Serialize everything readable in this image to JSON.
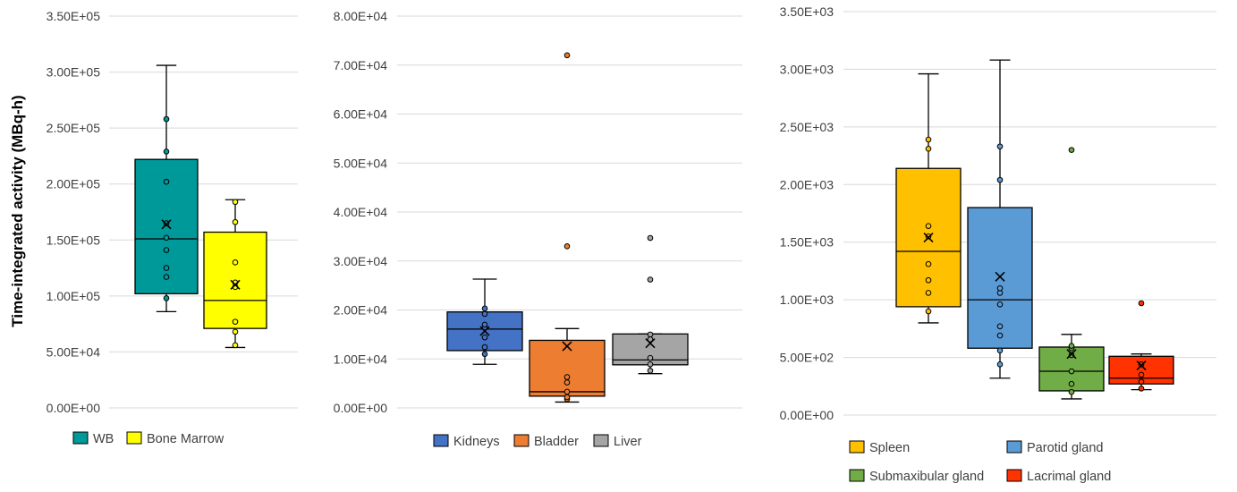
{
  "figure": {
    "ylabel": "Time-integrated activity (MBq-h)"
  },
  "chart_data": [
    {
      "type": "box",
      "ylim": [
        0,
        350000
      ],
      "yticks": [
        "0.00E+00",
        "5.00E+04",
        "1.00E+05",
        "1.50E+05",
        "2.00E+05",
        "2.50E+05",
        "3.00E+05",
        "3.50E+05"
      ],
      "ytick_values": [
        0,
        50000,
        100000,
        150000,
        200000,
        250000,
        300000,
        350000
      ],
      "grid": true,
      "legend_position": "bottom",
      "series": [
        {
          "name": "WB",
          "color": "#009999",
          "q1": 102000,
          "median": 151000,
          "q3": 222000,
          "whisker_low": 86000,
          "whisker_high": 306000,
          "mean": 164000,
          "points": [
            98000,
            117000,
            125000,
            141000,
            152000,
            165000,
            202000,
            229000,
            258000
          ]
        },
        {
          "name": "Bone Marrow",
          "color": "#FFFF00",
          "q1": 71000,
          "median": 96000,
          "q3": 157000,
          "whisker_low": 54000,
          "whisker_high": 186000,
          "mean": 110000,
          "points": [
            56000,
            68000,
            77000,
            108000,
            112000,
            130000,
            166000,
            184000
          ]
        }
      ]
    },
    {
      "type": "box",
      "ylim": [
        0,
        80000
      ],
      "yticks": [
        "0.00E+00",
        "1.00E+04",
        "2.00E+04",
        "3.00E+04",
        "4.00E+04",
        "5.00E+04",
        "6.00E+04",
        "7.00E+04",
        "8.00E+04"
      ],
      "ytick_values": [
        0,
        10000,
        20000,
        30000,
        40000,
        50000,
        60000,
        70000,
        80000
      ],
      "grid": true,
      "legend_position": "bottom",
      "series": [
        {
          "name": "Kidneys",
          "color": "#4472C4",
          "q1": 11700,
          "median": 16100,
          "q3": 19600,
          "whisker_low": 8900,
          "whisker_high": 26300,
          "mean": 15700,
          "points": [
            11000,
            12400,
            14400,
            16400,
            17000,
            19200,
            20300
          ]
        },
        {
          "name": "Bladder",
          "color": "#ED7D31",
          "q1": 2400,
          "median": 3300,
          "q3": 13800,
          "whisker_low": 1200,
          "whisker_high": 16200,
          "mean": 12600,
          "points": [
            1800,
            2200,
            3300,
            5200,
            6300,
            33000,
            72000
          ]
        },
        {
          "name": "Liver",
          "color": "#A5A5A5",
          "q1": 8800,
          "median": 9800,
          "q3": 15100,
          "whisker_low": 7000,
          "whisker_high": 15100,
          "mean": 13200,
          "points": [
            7600,
            8900,
            10200,
            14000,
            15000,
            26200,
            34700
          ]
        }
      ]
    },
    {
      "type": "box",
      "ylim": [
        0,
        3500
      ],
      "yticks": [
        "0.00E+00",
        "5.00E+02",
        "1.00E+03",
        "1.50E+03",
        "2.00E+03",
        "2.50E+03",
        "3.00E+03",
        "3.50E+03"
      ],
      "ytick_values": [
        0,
        500,
        1000,
        1500,
        2000,
        2500,
        3000,
        3500
      ],
      "grid": true,
      "legend_position": "bottom",
      "series": [
        {
          "name": "Spleen",
          "color": "#FFC000",
          "q1": 940,
          "median": 1420,
          "q3": 2140,
          "whisker_low": 800,
          "whisker_high": 2960,
          "mean": 1540,
          "points": [
            900,
            1060,
            1170,
            1310,
            1550,
            1640,
            2310,
            2390
          ]
        },
        {
          "name": "Parotid gland",
          "color": "#5B9BD5",
          "q1": 580,
          "median": 1000,
          "q3": 1800,
          "whisker_low": 320,
          "whisker_high": 3080,
          "mean": 1200,
          "points": [
            440,
            560,
            690,
            770,
            960,
            1060,
            1100,
            2040,
            2330
          ]
        },
        {
          "name": "Submaxibular gland",
          "color": "#70AD47",
          "q1": 210,
          "median": 380,
          "q3": 590,
          "whisker_low": 140,
          "whisker_high": 700,
          "mean": 530,
          "points": [
            200,
            270,
            380,
            520,
            580,
            600,
            2300
          ]
        },
        {
          "name": "Lacrimal gland",
          "color": "#FF3300",
          "q1": 270,
          "median": 320,
          "q3": 510,
          "whisker_low": 220,
          "whisker_high": 530,
          "mean": 430,
          "points": [
            230,
            290,
            350,
            440,
            970
          ]
        }
      ]
    }
  ]
}
